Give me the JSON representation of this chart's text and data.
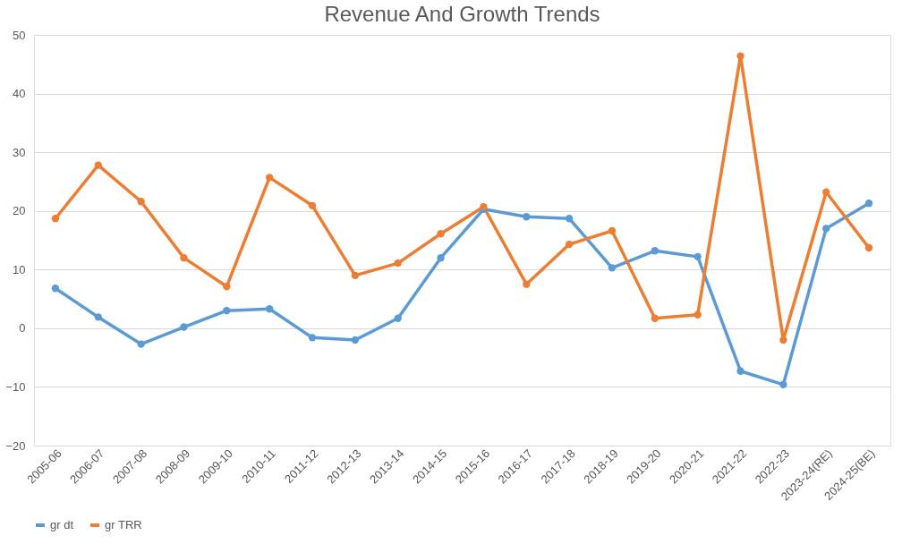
{
  "chart_data": {
    "type": "line",
    "title": "Revenue And Growth Trends",
    "categories": [
      "2005-06",
      "2006-07",
      "2007-08",
      "2008-09",
      "2009-10",
      "2010-11",
      "2011-12",
      "2012-13",
      "2013-14",
      "2014-15",
      "2015-16",
      "2016-17",
      "2017-18",
      "2018-19",
      "2019-20",
      "2020-21",
      "2021-22",
      "2022-23",
      "2023-24(RE)",
      "2024-25(BE)"
    ],
    "series": [
      {
        "name": "gr dt",
        "color": "#5b9bd5",
        "values": [
          6.8,
          1.9,
          -2.7,
          0.2,
          3.0,
          3.3,
          -1.6,
          -2.0,
          1.7,
          12.0,
          20.3,
          19.0,
          18.7,
          10.3,
          13.2,
          12.2,
          -7.3,
          -9.6,
          17.0,
          21.3
        ]
      },
      {
        "name": "gr TRR",
        "color": "#ed7d31",
        "values": [
          18.7,
          27.8,
          21.6,
          12.0,
          7.1,
          25.7,
          20.9,
          9.0,
          11.1,
          16.1,
          20.7,
          7.5,
          14.3,
          16.6,
          1.7,
          2.3,
          46.4,
          -2.0,
          23.2,
          13.7
        ]
      }
    ],
    "ylim": [
      -20,
      50
    ],
    "yticks": [
      -20,
      -10,
      0,
      10,
      20,
      30,
      40,
      50
    ],
    "grid": "y",
    "legend": "bottom",
    "marker": "circle",
    "line_style": "solid"
  }
}
